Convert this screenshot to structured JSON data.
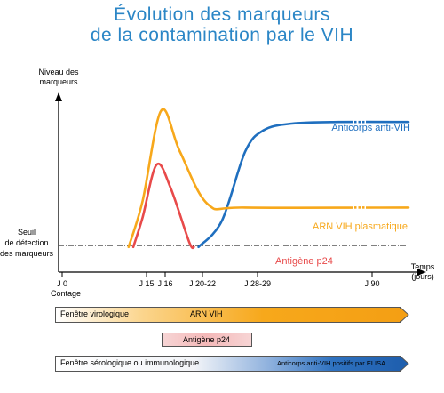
{
  "title": {
    "line1": "Évolution des marqueurs",
    "line2": "de la contamination par le VIH"
  },
  "chart_data": {
    "type": "line",
    "ylabel": "Niveau des marqueurs",
    "xlabel": "Temps (jours)",
    "x_ticks": [
      {
        "label": "J 0",
        "sub": "Contage"
      },
      {
        "label": "J 15"
      },
      {
        "label": "J 16"
      },
      {
        "label": "J 20-22"
      },
      {
        "label": "J 28-29"
      },
      {
        "label": "J 90"
      }
    ],
    "threshold": {
      "label": "Seuil de détection des marqueurs",
      "value": 20
    },
    "series": [
      {
        "name": "Anticorps anti-VIH",
        "color": "#1f6fbf",
        "points": [
          [
            30,
            12
          ],
          [
            35,
            28
          ],
          [
            40,
            70
          ],
          [
            44,
            83
          ],
          [
            50,
            87
          ],
          [
            60,
            88
          ],
          [
            75,
            88
          ]
        ]
      },
      {
        "name": "ARN VIH plasmatique",
        "color": "#f7a81b",
        "points": [
          [
            15,
            12
          ],
          [
            18,
            40
          ],
          [
            22,
            95
          ],
          [
            26,
            70
          ],
          [
            32,
            38
          ],
          [
            40,
            36
          ],
          [
            75,
            36
          ]
        ]
      },
      {
        "name": "Antigène p24",
        "color": "#e84a4a",
        "points": [
          [
            16,
            12
          ],
          [
            18,
            30
          ],
          [
            21,
            62
          ],
          [
            24,
            48
          ],
          [
            28,
            15
          ],
          [
            29,
            12
          ]
        ]
      }
    ]
  },
  "windows": {
    "virologique": {
      "label": "Fenêtre virologique",
      "inner": "ARN VIH"
    },
    "antigene": {
      "label": "Antigène p24"
    },
    "serologique": {
      "label": "Fenêtre sérologique ou immunologique",
      "inner": "Anticorps anti-VIH positifs par ELISA"
    }
  }
}
